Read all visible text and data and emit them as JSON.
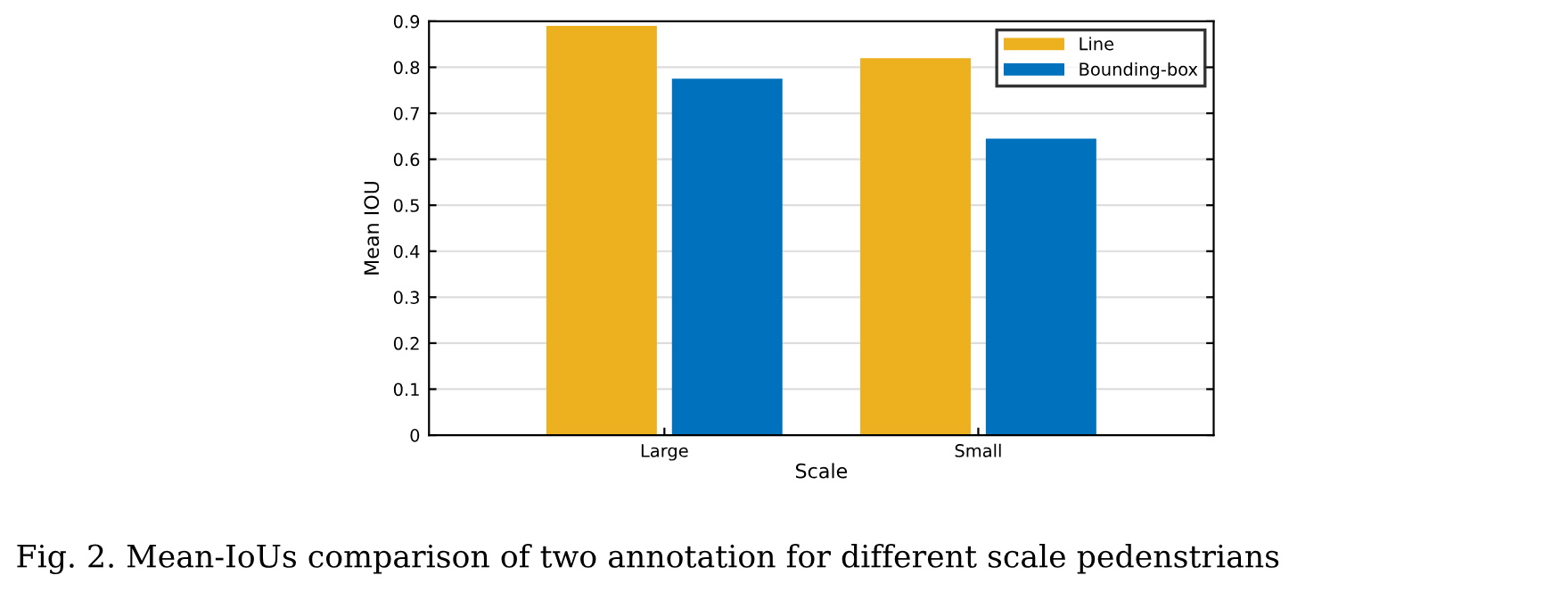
{
  "chart_data": {
    "type": "bar",
    "xlabel": "Scale",
    "ylabel": "Mean IOU",
    "categories": [
      "Large",
      "Small"
    ],
    "series": [
      {
        "name": "Line",
        "color": "#edb120",
        "values": [
          0.89,
          0.82
        ]
      },
      {
        "name": "Bounding-box",
        "color": "#0072bd",
        "values": [
          0.775,
          0.645
        ]
      }
    ],
    "ylim": [
      0,
      0.9
    ],
    "yticks": [
      0,
      0.1,
      0.2,
      0.3,
      0.4,
      0.5,
      0.6,
      0.7,
      0.8,
      0.9
    ],
    "grid": "y",
    "legend": "top right",
    "annotations": [
      "Fig. 2. Mean-IoUs comparison of two annotation for different scale pedenstrians"
    ]
  }
}
